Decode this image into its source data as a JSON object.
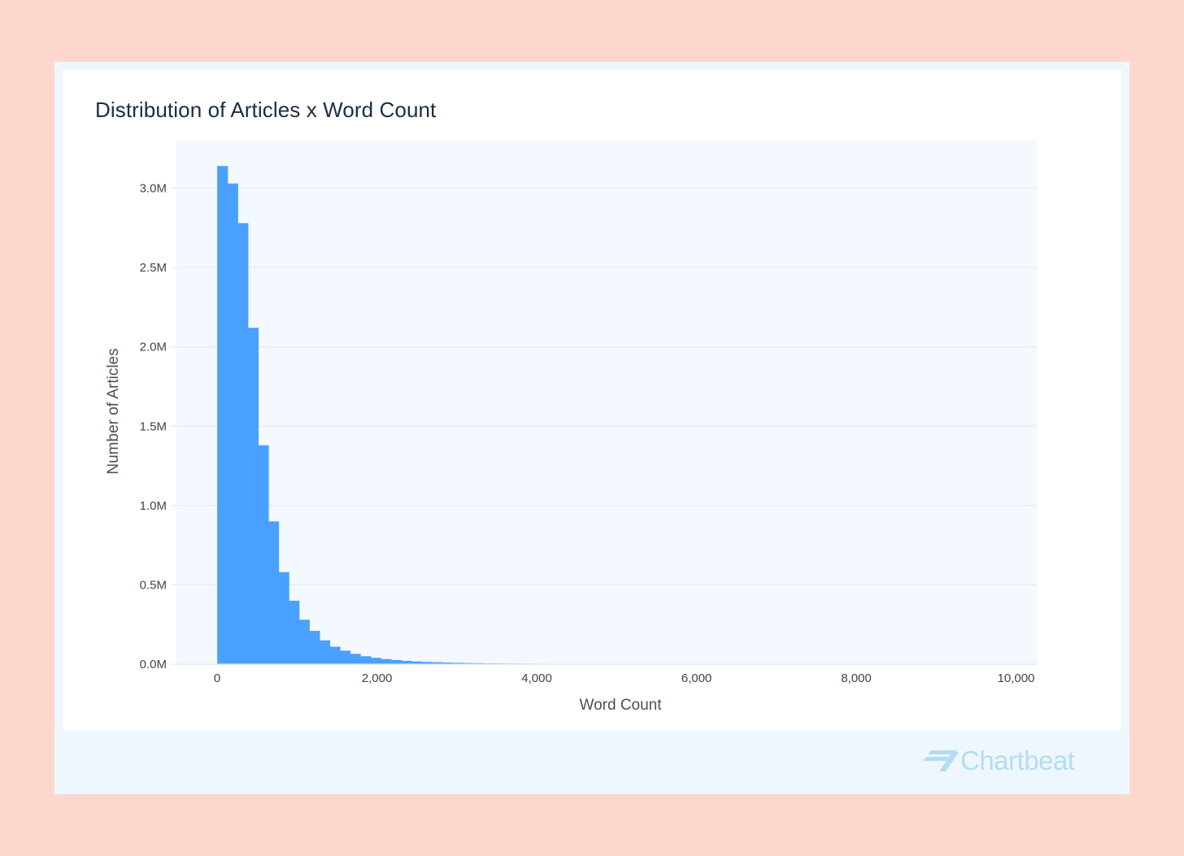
{
  "title": "Distribution of Articles x Word Count",
  "brand": {
    "name": "Chartbeat",
    "color": "#b4dcf5",
    "icon": "chartbeat-logo-icon"
  },
  "colors": {
    "bar": "#4aa0ff",
    "plot_bg": "#f3f9fe",
    "grid": "#dbe8f2",
    "tick_text": "#3d4650",
    "page_bg": "#fdd7ce"
  },
  "chart_data": {
    "type": "bar",
    "title": "Distribution of Articles x Word Count",
    "xlabel": "Word Count",
    "ylabel": "Number of Articles",
    "xlim": [
      -510,
      10260
    ],
    "ylim": [
      0,
      3.3
    ],
    "x_ticks": [
      0,
      2000,
      4000,
      6000,
      8000,
      10000
    ],
    "x_tick_labels": [
      "0",
      "2,000",
      "4,000",
      "6,000",
      "8,000",
      "10,000"
    ],
    "y_ticks": [
      0,
      0.5,
      1.0,
      1.5,
      2.0,
      2.5,
      3.0
    ],
    "y_tick_labels": [
      "0.0M",
      "0.5M",
      "1.0M",
      "1.5M",
      "2.0M",
      "2.5M",
      "3.0M"
    ],
    "y_unit": "millions of articles",
    "grid": true,
    "bin_width": 128,
    "bin_start": 0,
    "values": [
      3.14,
      3.03,
      2.78,
      2.12,
      1.38,
      0.9,
      0.58,
      0.4,
      0.28,
      0.21,
      0.15,
      0.11,
      0.085,
      0.065,
      0.05,
      0.04,
      0.032,
      0.026,
      0.021,
      0.017,
      0.014,
      0.012,
      0.01,
      0.0085,
      0.0072,
      0.0062,
      0.0053,
      0.0046,
      0.004,
      0.0035,
      0.003,
      0.0026,
      0.0023,
      0.002,
      0.0017,
      0.0015,
      0.0013,
      0.0011,
      0.001,
      0.0009
    ]
  }
}
